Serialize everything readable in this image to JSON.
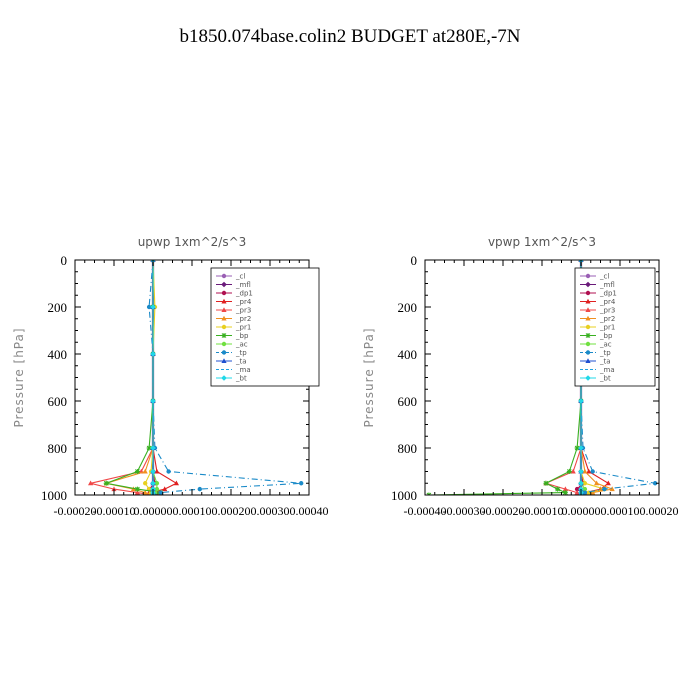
{
  "figure_title": "b1850.074base.colin2  BUDGET at280E,-7N",
  "chart_data": [
    {
      "type": "line",
      "title": "upwp   1xm^2/s^3",
      "ylabel": "Pressure [hPa]",
      "xlabel": "",
      "xlim": [
        -0.0002,
        0.0004
      ],
      "ylim": [
        1000,
        0
      ],
      "xticks": [
        "-0.00020",
        "-0.00010",
        "0.00000",
        "0.00010",
        "0.00020",
        "0.00030",
        "0.00040"
      ],
      "yticks": [
        "0",
        "200",
        "400",
        "600",
        "800",
        "1000"
      ],
      "grid": false,
      "legend_position": "top-right",
      "series": [
        {
          "name": "_cl",
          "color": "#9a5fb4",
          "x": [
            0,
            0,
            0,
            0,
            0,
            0,
            0,
            0,
            0,
            0
          ],
          "y": [
            0,
            200,
            400,
            600,
            800,
            900,
            950,
            975,
            990,
            1000
          ]
        },
        {
          "name": "_mfl",
          "color": "#6a1a7a",
          "x": [
            0,
            0,
            0,
            0,
            0,
            0,
            0,
            0,
            0,
            0
          ],
          "y": [
            0,
            200,
            400,
            600,
            800,
            900,
            950,
            975,
            990,
            1000
          ]
        },
        {
          "name": "_dp1",
          "color": "#b01050",
          "x": [
            0,
            0,
            0,
            0,
            0,
            0,
            5e-06,
            -1e-05,
            1e-05,
            0
          ],
          "y": [
            0,
            200,
            400,
            600,
            800,
            900,
            950,
            975,
            990,
            1000
          ]
        },
        {
          "name": "_pr4",
          "color": "#e02020",
          "x": [
            0,
            0,
            0,
            0,
            0,
            1e-05,
            6e-05,
            3e-05,
            -1e-05,
            0
          ],
          "y": [
            0,
            200,
            400,
            600,
            800,
            900,
            950,
            975,
            990,
            1000
          ]
        },
        {
          "name": "_pr3",
          "color": "#f04848",
          "x": [
            0,
            0,
            0,
            0,
            0,
            -3e-05,
            -0.00016,
            -0.0001,
            -4e-05,
            0
          ],
          "y": [
            0,
            200,
            400,
            600,
            800,
            900,
            950,
            975,
            990,
            1000
          ]
        },
        {
          "name": "_pr2",
          "color": "#f09020",
          "x": [
            0,
            0,
            0,
            0,
            0,
            -2e-05,
            -0.00012,
            -5e-05,
            -2e-05,
            0
          ],
          "y": [
            0,
            200,
            400,
            600,
            800,
            900,
            950,
            975,
            990,
            1000
          ]
        },
        {
          "name": "_pr1",
          "color": "#e8d020",
          "x": [
            0,
            5e-06,
            0,
            0,
            0,
            -5e-06,
            -2e-05,
            -1e-05,
            -5e-06,
            0
          ],
          "y": [
            0,
            200,
            400,
            600,
            800,
            900,
            950,
            975,
            990,
            1000
          ]
        },
        {
          "name": "_bp",
          "color": "#38b020",
          "x": [
            0,
            0,
            0,
            0,
            -1e-05,
            -4e-05,
            -0.00012,
            -4e-05,
            2e-05,
            0
          ],
          "y": [
            0,
            200,
            400,
            600,
            800,
            900,
            950,
            975,
            990,
            1000
          ]
        },
        {
          "name": "_ac",
          "color": "#70e040",
          "x": [
            0,
            0,
            0,
            0,
            0,
            0,
            1e-05,
            1e-05,
            5e-06,
            0
          ],
          "y": [
            0,
            200,
            400,
            600,
            800,
            900,
            950,
            975,
            990,
            1000
          ]
        },
        {
          "name": "_tp",
          "color": "#1a8ac8",
          "x": [
            0,
            -1e-05,
            0,
            0,
            5e-06,
            4e-05,
            0.00038,
            0.00012,
            2e-05,
            0
          ],
          "y": [
            0,
            200,
            400,
            600,
            800,
            900,
            950,
            975,
            990,
            1000
          ]
        },
        {
          "name": "_ta",
          "color": "#2050d0",
          "x": [
            0,
            0,
            0,
            0,
            0,
            0,
            0,
            0,
            0,
            0
          ],
          "y": [
            0,
            200,
            400,
            600,
            800,
            900,
            950,
            975,
            990,
            1000
          ]
        },
        {
          "name": "_ma",
          "color": "#20a0e0",
          "x": [
            0,
            0,
            0,
            0,
            0,
            0,
            0,
            0,
            0,
            0
          ],
          "y": [
            0,
            200,
            400,
            600,
            800,
            900,
            950,
            975,
            990,
            1000
          ]
        },
        {
          "name": "_bt",
          "color": "#20d8e8",
          "x": [
            0,
            0,
            0,
            0,
            0,
            0,
            0,
            0,
            0,
            0
          ],
          "y": [
            0,
            200,
            400,
            600,
            800,
            900,
            950,
            975,
            990,
            1000
          ]
        }
      ]
    },
    {
      "type": "line",
      "title": "vpwp   1xm^2/s^3",
      "ylabel": "Pressure [hPa]",
      "xlabel": "",
      "xlim": [
        -0.0004,
        0.0002
      ],
      "ylim": [
        1000,
        0
      ],
      "xticks": [
        "-0.00040",
        "-0.00030",
        "-0.00020",
        "-0.00010",
        "0.00000",
        "0.00010",
        "0.00020"
      ],
      "yticks": [
        "0",
        "200",
        "400",
        "600",
        "800",
        "1000"
      ],
      "grid": false,
      "legend_position": "top-right",
      "series": [
        {
          "name": "_cl",
          "color": "#9a5fb4",
          "x": [
            0,
            0,
            0,
            0,
            0,
            0,
            0,
            0,
            0,
            0
          ],
          "y": [
            0,
            200,
            400,
            600,
            800,
            900,
            950,
            975,
            990,
            1000
          ]
        },
        {
          "name": "_mfl",
          "color": "#6a1a7a",
          "x": [
            0,
            0,
            0,
            0,
            0,
            0,
            0,
            0,
            0,
            0
          ],
          "y": [
            0,
            200,
            400,
            600,
            800,
            900,
            950,
            975,
            990,
            1000
          ]
        },
        {
          "name": "_dp1",
          "color": "#b01050",
          "x": [
            0,
            0,
            0,
            0,
            0,
            0,
            5e-06,
            -1e-05,
            1e-05,
            0
          ],
          "y": [
            0,
            200,
            400,
            600,
            800,
            900,
            950,
            975,
            990,
            1000
          ]
        },
        {
          "name": "_pr4",
          "color": "#e02020",
          "x": [
            0,
            0,
            0,
            0,
            0,
            2e-05,
            7e-05,
            5e-05,
            1e-05,
            0
          ],
          "y": [
            0,
            200,
            400,
            600,
            800,
            900,
            950,
            975,
            990,
            1000
          ]
        },
        {
          "name": "_pr3",
          "color": "#f04848",
          "x": [
            0,
            0,
            0,
            0,
            0,
            -2e-05,
            -9e-05,
            -4e-05,
            -1e-05,
            0
          ],
          "y": [
            0,
            200,
            400,
            600,
            800,
            900,
            950,
            975,
            990,
            1000
          ]
        },
        {
          "name": "_pr2",
          "color": "#f09020",
          "x": [
            0,
            0,
            0,
            0,
            0,
            1e-05,
            4e-05,
            8e-05,
            3e-05,
            0
          ],
          "y": [
            0,
            200,
            400,
            600,
            800,
            900,
            950,
            975,
            990,
            1000
          ]
        },
        {
          "name": "_pr1",
          "color": "#e8d020",
          "x": [
            0,
            0,
            0,
            0,
            0,
            0,
            1e-05,
            6e-05,
            2e-05,
            0
          ],
          "y": [
            0,
            200,
            400,
            600,
            800,
            900,
            950,
            975,
            990,
            1000
          ]
        },
        {
          "name": "_bp",
          "color": "#38b020",
          "x": [
            0,
            0,
            0,
            0,
            -1e-05,
            -3e-05,
            -9e-05,
            -6e-05,
            -4e-05,
            -0.00039
          ],
          "y": [
            0,
            200,
            400,
            600,
            800,
            900,
            950,
            975,
            990,
            1000
          ]
        },
        {
          "name": "_ac",
          "color": "#70e040",
          "x": [
            0,
            0,
            0,
            0,
            0,
            0,
            0,
            1e-05,
            5e-06,
            0
          ],
          "y": [
            0,
            200,
            400,
            600,
            800,
            900,
            950,
            975,
            990,
            1000
          ]
        },
        {
          "name": "_tp",
          "color": "#1a8ac8",
          "x": [
            0,
            -1e-05,
            0,
            0,
            5e-06,
            3e-05,
            0.00019,
            6e-05,
            1e-05,
            0
          ],
          "y": [
            0,
            200,
            400,
            600,
            800,
            900,
            950,
            975,
            990,
            1000
          ]
        },
        {
          "name": "_ta",
          "color": "#2050d0",
          "x": [
            0,
            0,
            0,
            0,
            0,
            0,
            0,
            0,
            0,
            0
          ],
          "y": [
            0,
            200,
            400,
            600,
            800,
            900,
            950,
            975,
            990,
            1000
          ]
        },
        {
          "name": "_ma",
          "color": "#20a0e0",
          "x": [
            0,
            0,
            0,
            0,
            0,
            0,
            0,
            0,
            0,
            0
          ],
          "y": [
            0,
            200,
            400,
            600,
            800,
            900,
            950,
            975,
            990,
            1000
          ]
        },
        {
          "name": "_bt",
          "color": "#20d8e8",
          "x": [
            0,
            0,
            0,
            0,
            0,
            0,
            0,
            0,
            0,
            0
          ],
          "y": [
            0,
            200,
            400,
            600,
            800,
            900,
            950,
            975,
            990,
            1000
          ]
        }
      ]
    }
  ]
}
